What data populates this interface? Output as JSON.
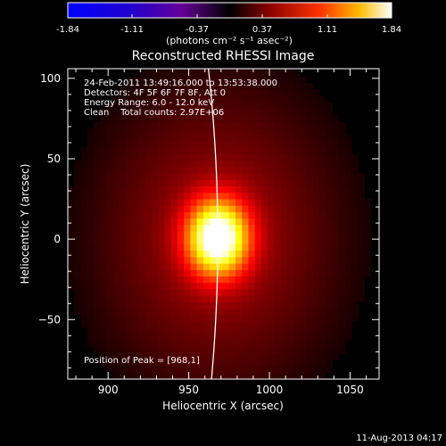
{
  "colorbar": {
    "min": -1.84,
    "max": 1.84,
    "tick_labels": [
      "-1.84",
      "-1.11",
      "-0.37",
      "0.37",
      "1.11",
      "1.84"
    ],
    "tick_values": [
      -1.84,
      -1.11,
      -0.37,
      0.37,
      1.11,
      1.84
    ],
    "units_label": "(photons cm⁻² s⁻¹ asec⁻²)"
  },
  "chart_data": {
    "type": "heatmap",
    "title": "Reconstructed RHESSI Image",
    "xlabel": "Heliocentric X (arcsec)",
    "ylabel": "Heliocentric Y (arcsec)",
    "xlim": [
      875,
      1068
    ],
    "ylim": [
      -87,
      106
    ],
    "x_ticks": [
      900,
      950,
      1000,
      1050
    ],
    "y_ticks": [
      -50,
      0,
      50,
      100
    ],
    "x_tick_labels": [
      "900",
      "950",
      "1000",
      "1050"
    ],
    "y_tick_labels": [
      "−50",
      "0",
      "50",
      "100"
    ],
    "peak": {
      "x": 968,
      "y": 1
    },
    "limb": {
      "center_x": 0,
      "center_y": 0,
      "radius_arcsec": 968
    },
    "annotations": [
      "24-Feb-2011 13:49:16.000 to 13:53:38.000",
      "Detectors: 4F 5F 6F 7F 8F, Att 0",
      "Energy Range: 6.0 - 12.0 keV",
      "Clean    Total counts: 2.97E+06"
    ],
    "peak_label": "Position of Peak = [968,1]",
    "colormap": "hot"
  },
  "footer": {
    "timestamp": "11-Aug-2013 04:17"
  }
}
